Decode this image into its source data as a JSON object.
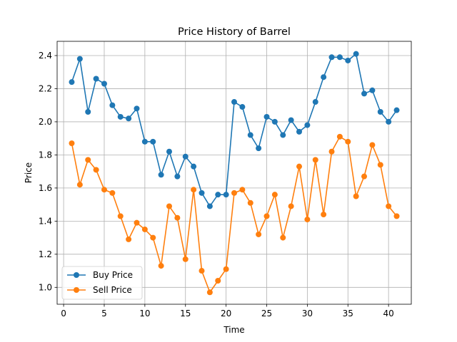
{
  "chart_data": {
    "type": "line",
    "title": "Price History of Barrel",
    "xlabel": "Time",
    "ylabel": "Price",
    "xlim": [
      -0.8,
      42.8
    ],
    "ylim": [
      0.898,
      2.486
    ],
    "xticks": [
      0,
      5,
      10,
      15,
      20,
      25,
      30,
      35,
      40
    ],
    "yticks": [
      1.0,
      1.2,
      1.4,
      1.6,
      1.8,
      2.0,
      2.2,
      2.4
    ],
    "grid": true,
    "legend_position": "lower-left",
    "x": [
      1,
      2,
      3,
      4,
      5,
      6,
      7,
      8,
      9,
      10,
      11,
      12,
      13,
      14,
      15,
      16,
      17,
      18,
      19,
      20,
      21,
      22,
      23,
      24,
      25,
      26,
      27,
      28,
      29,
      30,
      31,
      32,
      33,
      34,
      35,
      36,
      37,
      38,
      39,
      40,
      41
    ],
    "series": [
      {
        "name": "Buy Price",
        "color": "#1f77b4",
        "values": [
          2.24,
          2.38,
          2.06,
          2.26,
          2.23,
          2.1,
          2.03,
          2.02,
          2.08,
          1.88,
          1.88,
          1.68,
          1.82,
          1.67,
          1.79,
          1.73,
          1.57,
          1.49,
          1.56,
          1.56,
          2.12,
          2.09,
          1.92,
          1.84,
          2.03,
          2.0,
          1.92,
          2.01,
          1.94,
          1.98,
          2.12,
          2.27,
          2.39,
          2.39,
          2.37,
          2.41,
          2.17,
          2.19,
          2.06,
          2.0,
          2.07
        ]
      },
      {
        "name": "Sell Price",
        "color": "#ff7f0e",
        "values": [
          1.87,
          1.62,
          1.77,
          1.71,
          1.59,
          1.57,
          1.43,
          1.29,
          1.39,
          1.35,
          1.3,
          1.13,
          1.49,
          1.42,
          1.17,
          1.59,
          1.1,
          0.97,
          1.04,
          1.11,
          1.57,
          1.59,
          1.51,
          1.32,
          1.43,
          1.56,
          1.3,
          1.49,
          1.73,
          1.41,
          1.77,
          1.44,
          1.82,
          1.91,
          1.88,
          1.55,
          1.67,
          1.86,
          1.74,
          1.49,
          1.43
        ]
      }
    ]
  }
}
